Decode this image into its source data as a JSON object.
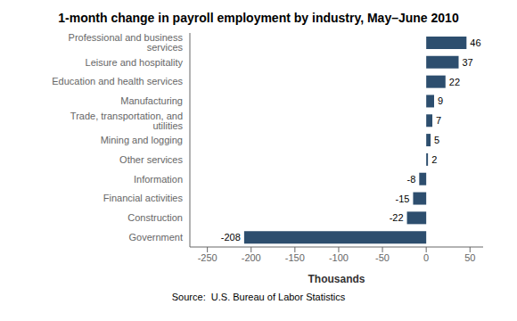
{
  "chart_data": {
    "type": "bar",
    "orientation": "horizontal",
    "title": "1-month change in payroll employment by industry, May–June 2010",
    "categories": [
      "Professional and business services",
      "Leisure and hospitality",
      "Education and health services",
      "Manufacturing",
      "Trade, transportation, and utilities",
      "Mining and logging",
      "Other services",
      "Information",
      "Financial activities",
      "Construction",
      "Government"
    ],
    "values": [
      46,
      37,
      22,
      9,
      7,
      5,
      2,
      -8,
      -15,
      -22,
      -208
    ],
    "color": "#2d4e6e",
    "xlabel": "Thousands",
    "annotations": [
      "Source:  U.S. Bureau of Labor Statistics"
    ],
    "xlim": [
      -270,
      65
    ],
    "xticks": [
      -250,
      -200,
      -150,
      -100,
      -50,
      0,
      50
    ],
    "data_labels": true,
    "grid": false
  }
}
